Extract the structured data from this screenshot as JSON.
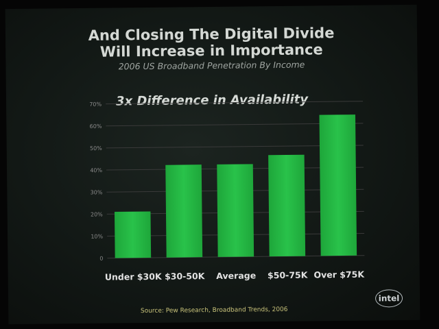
{
  "slide": {
    "title_line1": "And Closing The Digital Divide",
    "title_line2": "Will Increase in Importance",
    "subtitle": "2006 US Broadband Penetration By Income",
    "highlight": "3x Difference in Availability",
    "source": "Source: Pew Research, Broadband Trends, 2006",
    "logo_text": "intel"
  },
  "colors": {
    "bar": "#1ea63a",
    "bar_light": "#29c24a",
    "grid": "#3a3a3a",
    "tick": "#8a8a8a",
    "category": "#e2e2e2"
  },
  "chart_data": {
    "type": "bar",
    "title": "",
    "xlabel": "",
    "ylabel": "",
    "ylim": [
      0,
      70
    ],
    "yticks": [
      0,
      10,
      20,
      30,
      40,
      50,
      60,
      70
    ],
    "ytick_labels": [
      "0",
      "10%",
      "20%",
      "30%",
      "40%",
      "50%",
      "60%",
      "70%"
    ],
    "categories": [
      "Under $30K",
      "$30-50K",
      "Average",
      "$50-75K",
      "Over $75K"
    ],
    "values": [
      21,
      42,
      42,
      46,
      64
    ],
    "grid": true
  }
}
